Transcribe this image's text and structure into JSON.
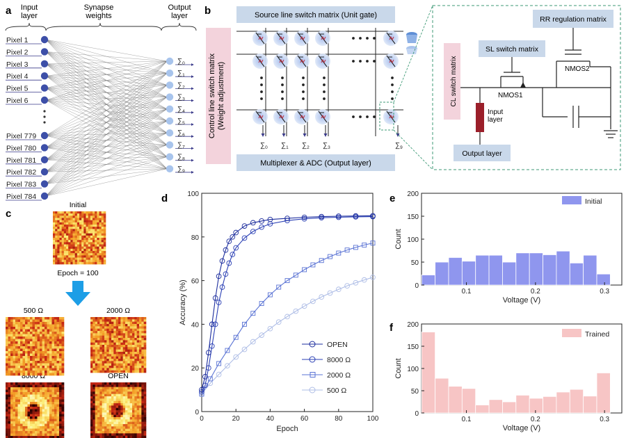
{
  "panels": {
    "a": {
      "letter": "a",
      "input_title": "Input\nlayer",
      "synapse_title": "Synapse\nweights",
      "output_title": "Output\nlayer",
      "pixels_top": [
        "Pixel 1",
        "Pixel 2",
        "Pixel 3",
        "Pixel 4",
        "Pixel 5",
        "Pixel 6"
      ],
      "pixels_bottom": [
        "Pixel 779",
        "Pixel 780",
        "Pixel 781",
        "Pixel 782",
        "Pixel 783",
        "Pixel 784"
      ],
      "outputs": [
        "∑0",
        "∑1",
        "∑2",
        "∑3",
        "∑4",
        "∑5",
        "∑6",
        "∑7",
        "∑8",
        "∑9"
      ]
    },
    "b": {
      "letter": "b",
      "source_matrix": "Source line switch matrix (Unit gate)",
      "control_matrix_line1": "Control line switch matrix",
      "control_matrix_line2": "(Weight adjustment)",
      "mux": "Multiplexer & ADC (Output layer)",
      "sums": [
        "∑0",
        "∑1",
        "∑2",
        "∑3",
        "∑9"
      ],
      "rr_matrix": "RR regulation matrix",
      "sl_matrix": "SL switch matrix",
      "cl_matrix": "CL switch matrix",
      "nmos1": "NMOS1",
      "nmos2": "NMOS2",
      "input_layer": "Input\nlayer",
      "output_layer": "Output layer"
    },
    "c": {
      "letter": "c",
      "initial": "Initial",
      "epoch": "Epoch = 100",
      "maps": [
        "500 Ω",
        "2000 Ω",
        "8000 Ω",
        "OPEN"
      ]
    },
    "d": {
      "letter": "d"
    },
    "e": {
      "letter": "e"
    },
    "f": {
      "letter": "f"
    }
  },
  "chart_data": [
    {
      "id": "d",
      "type": "line",
      "xlabel": "Epoch",
      "ylabel": "Accuracy (%)",
      "xlim": [
        0,
        100
      ],
      "ylim": [
        0,
        100
      ],
      "xticks": [
        0,
        20,
        40,
        60,
        80,
        100
      ],
      "yticks": [
        0,
        20,
        40,
        60,
        80,
        100
      ],
      "legend_position": "bottom-right",
      "series": [
        {
          "name": "OPEN",
          "color": "#1a2b9c",
          "marker": "circle",
          "x": [
            0,
            2,
            4,
            6,
            8,
            10,
            12,
            14,
            16,
            18,
            20,
            25,
            30,
            35,
            40,
            50,
            60,
            70,
            80,
            90,
            100
          ],
          "y": [
            10,
            16,
            27,
            40,
            52,
            62,
            69,
            74,
            78,
            80,
            82,
            85,
            86.5,
            87.3,
            88,
            88.5,
            89,
            89.3,
            89.5,
            89.6,
            89.7
          ]
        },
        {
          "name": "8000 Ω",
          "color": "#2a3fb4",
          "marker": "circle",
          "x": [
            0,
            2,
            4,
            6,
            8,
            10,
            12,
            14,
            16,
            18,
            20,
            25,
            30,
            35,
            40,
            50,
            60,
            70,
            80,
            90,
            100
          ],
          "y": [
            9,
            12,
            20,
            30,
            40,
            50,
            57,
            63,
            68,
            72,
            75,
            79.5,
            82.5,
            84.5,
            86,
            87.5,
            88.3,
            88.8,
            89,
            89.2,
            89.3
          ]
        },
        {
          "name": "2000 Ω",
          "color": "#5a73d4",
          "marker": "square",
          "x": [
            0,
            5,
            10,
            15,
            20,
            25,
            30,
            35,
            40,
            45,
            50,
            55,
            60,
            65,
            70,
            75,
            80,
            85,
            90,
            95,
            100
          ],
          "y": [
            8,
            15,
            22,
            28,
            34,
            40,
            45,
            49.5,
            53.5,
            57,
            60,
            62.5,
            65,
            67.2,
            69.2,
            71,
            72.6,
            74,
            75.2,
            76.3,
            77.2
          ]
        },
        {
          "name": "500 Ω",
          "color": "#aebde6",
          "marker": "circle",
          "x": [
            0,
            5,
            10,
            15,
            20,
            25,
            30,
            35,
            40,
            45,
            50,
            55,
            60,
            65,
            70,
            75,
            80,
            85,
            90,
            95,
            100
          ],
          "y": [
            8,
            13,
            17,
            21,
            25,
            28.5,
            32,
            35,
            38,
            41,
            43.5,
            46,
            48.3,
            50.5,
            52.5,
            54.3,
            56,
            57.6,
            59,
            60.3,
            61.5
          ]
        }
      ]
    },
    {
      "id": "e",
      "type": "bar",
      "xlabel": "Voltage (V)",
      "ylabel": "Count",
      "legend": "Initial",
      "legend_position": "top-right",
      "color": "#8f96ee",
      "xlim": [
        0.035,
        0.325
      ],
      "ylim": [
        0,
        200
      ],
      "xticks": [
        0.1,
        0.2,
        0.3
      ],
      "yticks": [
        0,
        50,
        100,
        150,
        200
      ],
      "bin_width": 0.0195,
      "bin_centers": [
        0.045,
        0.0645,
        0.084,
        0.1035,
        0.123,
        0.1425,
        0.162,
        0.1815,
        0.201,
        0.2205,
        0.24,
        0.2595,
        0.279,
        0.2985,
        0.318
      ],
      "values": [
        22,
        50,
        60,
        52,
        65,
        65,
        50,
        70,
        70,
        66,
        74,
        48,
        65,
        24,
        0
      ]
    },
    {
      "id": "f",
      "type": "bar",
      "xlabel": "Voltage (V)",
      "ylabel": "Count",
      "legend": "Trained",
      "legend_position": "top-right",
      "color": "#f7c5c5",
      "xlim": [
        0.035,
        0.325
      ],
      "ylim": [
        0,
        200
      ],
      "xticks": [
        0.1,
        0.2,
        0.3
      ],
      "yticks": [
        0,
        50,
        100,
        150,
        200
      ],
      "bin_width": 0.0195,
      "bin_centers": [
        0.045,
        0.0645,
        0.084,
        0.1035,
        0.123,
        0.1425,
        0.162,
        0.1815,
        0.201,
        0.2205,
        0.24,
        0.2595,
        0.279,
        0.2985,
        0.318
      ],
      "values": [
        182,
        78,
        60,
        55,
        18,
        30,
        25,
        40,
        33,
        37,
        47,
        53,
        38,
        90,
        0
      ]
    }
  ]
}
